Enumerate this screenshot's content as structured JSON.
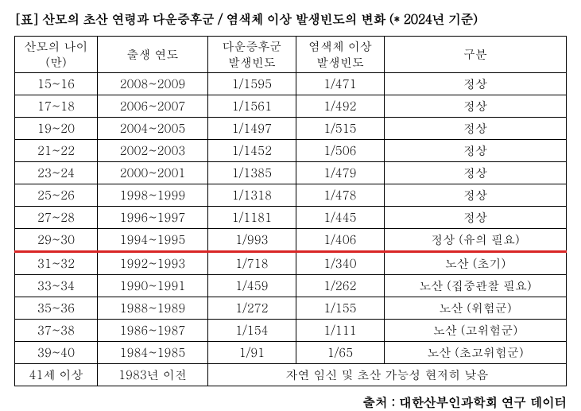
{
  "title": "[표] 산모의 초산 연령과 다운증후군 / 염색체 이상 발생빈도의 변화 (* 2024년 기준)",
  "headers": {
    "age": "산모의 나이\n(만)",
    "year": "출생 연도",
    "down": "다운증후군\n발생빈도",
    "chrom": "염색체 이상\n발생빈도",
    "class": "구분"
  },
  "rows": [
    {
      "age": "15~16",
      "year": "2008~2009",
      "down": "1/1595",
      "chrom": "1/471",
      "class": "정상",
      "redline": false
    },
    {
      "age": "17~18",
      "year": "2006~2007",
      "down": "1/1561",
      "chrom": "1/492",
      "class": "정상",
      "redline": false
    },
    {
      "age": "19~20",
      "year": "2004~2005",
      "down": "1/1497",
      "chrom": "1/515",
      "class": "정상",
      "redline": false
    },
    {
      "age": "21~22",
      "year": "2002~2003",
      "down": "1/1452",
      "chrom": "1/506",
      "class": "정상",
      "redline": false
    },
    {
      "age": "23~24",
      "year": "2000~2001",
      "down": "1/1385",
      "chrom": "1/479",
      "class": "정상",
      "redline": false
    },
    {
      "age": "25~26",
      "year": "1998~1999",
      "down": "1/1318",
      "chrom": "1/478",
      "class": "정상",
      "redline": false
    },
    {
      "age": "27~28",
      "year": "1996~1997",
      "down": "1/1181",
      "chrom": "1/445",
      "class": "정상",
      "redline": false
    },
    {
      "age": "29~30",
      "year": "1994~1995",
      "down": "1/993",
      "chrom": "1/406",
      "class": "정상 (유의 필요)",
      "redline": true
    },
    {
      "age": "31~32",
      "year": "1992~1993",
      "down": "1/718",
      "chrom": "1/340",
      "class": "노산 (초기)",
      "redline": false
    },
    {
      "age": "33~34",
      "year": "1990~1991",
      "down": "1/459",
      "chrom": "1/262",
      "class": "노산 (집중관찰 필요)",
      "redline": false
    },
    {
      "age": "35~36",
      "year": "1988~1989",
      "down": "1/272",
      "chrom": "1/155",
      "class": "노산 (위험군)",
      "redline": false
    },
    {
      "age": "37~38",
      "year": "1986~1987",
      "down": "1/154",
      "chrom": "1/111",
      "class": "노산 (고위험군)",
      "redline": false
    },
    {
      "age": "39~40",
      "year": "1984~1985",
      "down": "1/91",
      "chrom": "1/65",
      "class": "노산 (초고위험군)",
      "redline": false
    }
  ],
  "lastRow": {
    "age": "41세 이상",
    "year": "1983년 이전",
    "merged": "자연 임신 및 초산 가능성 현저히 낮음"
  },
  "source": "출처 : 대한산부인과학회 연구 데이터",
  "style": {
    "highlight_color": "#d92626",
    "border_color": "#000000",
    "bg_color": "#ffffff",
    "text_color": "#000000",
    "title_fontsize": 16,
    "cell_fontsize": 15
  }
}
